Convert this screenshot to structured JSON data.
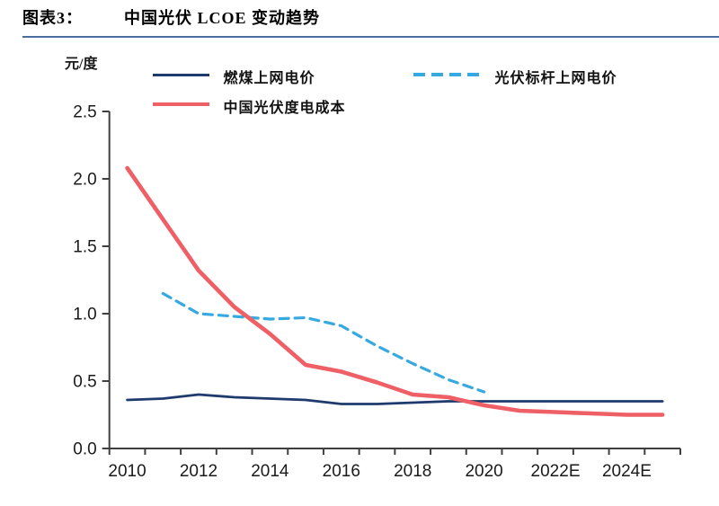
{
  "header": {
    "figure_label": "图表3：",
    "title": "中国光伏 LCOE 变动趋势"
  },
  "chart_data": {
    "type": "line",
    "title": "中国光伏 LCOE 变动趋势",
    "unit_label": "元/度",
    "categories": [
      2010,
      2011,
      2012,
      2013,
      2014,
      2015,
      2016,
      2017,
      2018,
      2019,
      2020,
      2021,
      2022,
      2023,
      2024,
      2025
    ],
    "x_tick_labels": [
      "2010",
      "2012",
      "2014",
      "2016",
      "2018",
      "2020",
      "2022E",
      "2024E"
    ],
    "y_ticks": [
      0.0,
      0.5,
      1.0,
      1.5,
      2.0,
      2.5
    ],
    "ylim": [
      0,
      2.5
    ],
    "grid": false,
    "legend_position": "top-left",
    "series": [
      {
        "name": "燃煤上网电价",
        "color": "#1f3a6d",
        "line_style": "solid",
        "values": [
          0.36,
          0.37,
          0.4,
          0.38,
          0.37,
          0.36,
          0.33,
          0.33,
          0.34,
          0.35,
          0.35,
          0.35,
          0.35,
          0.35,
          0.35,
          0.35
        ]
      },
      {
        "name": "光伏标杆上网电价",
        "color": "#36a9e0",
        "line_style": "dashed",
        "values": [
          null,
          1.15,
          1.0,
          0.98,
          0.96,
          0.97,
          0.91,
          0.76,
          0.63,
          0.51,
          0.42,
          null,
          null,
          null,
          null,
          null
        ]
      },
      {
        "name": "中国光伏度电成本",
        "color": "#ee5f66",
        "line_style": "solid",
        "values": [
          2.08,
          1.7,
          1.32,
          1.05,
          0.85,
          0.62,
          0.57,
          0.49,
          0.4,
          0.38,
          0.32,
          0.28,
          0.27,
          0.26,
          0.25,
          0.25
        ]
      }
    ]
  },
  "colors": {
    "title_underline": "#4a6e9e",
    "axis": "#3f3f3f",
    "text": "#1a1a1a",
    "background": "#ffffff"
  }
}
